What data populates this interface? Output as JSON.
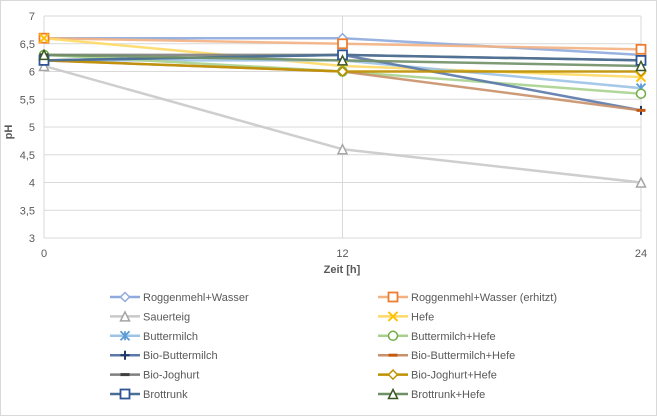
{
  "chart_data": {
    "type": "line",
    "title": "",
    "xlabel": "Zeit [h]",
    "ylabel": "pH",
    "x": [
      0,
      12,
      24
    ],
    "xticks": [
      "0",
      "12",
      "24"
    ],
    "ylim": [
      3,
      7
    ],
    "yticks": [
      "3",
      "3,5",
      "4",
      "4,5",
      "5",
      "5,5",
      "6",
      "6,5",
      "7"
    ],
    "grid": true,
    "legend_position": "bottom",
    "series": [
      {
        "name": "Roggenmehl+Wasser",
        "values": [
          6.6,
          6.6,
          6.3
        ],
        "color": "#8faadc",
        "marker": "diamond"
      },
      {
        "name": "Roggenmehl+Wasser (erhitzt)",
        "values": [
          6.6,
          6.5,
          6.4
        ],
        "color": "#f4b183",
        "marker": "square",
        "marker_color": "#ed7d31"
      },
      {
        "name": "Sauerteig",
        "values": [
          6.1,
          4.6,
          4.0
        ],
        "color": "#c9c9c9",
        "marker": "triangle",
        "marker_color": "#a5a5a5"
      },
      {
        "name": "Hefe",
        "values": [
          6.6,
          6.1,
          5.9
        ],
        "color": "#ffd966",
        "marker": "x",
        "marker_color": "#ffc000"
      },
      {
        "name": "Buttermilch",
        "values": [
          6.2,
          6.2,
          5.7
        ],
        "color": "#9dc3e6",
        "marker": "star",
        "marker_color": "#5b9bd5"
      },
      {
        "name": "Buttermilch+Hefe",
        "values": [
          6.3,
          6.0,
          5.6
        ],
        "color": "#a9d18e",
        "marker": "circle",
        "marker_color": "#70ad47"
      },
      {
        "name": "Bio-Buttermilch",
        "values": [
          6.2,
          6.3,
          5.3
        ],
        "color": "#5a78a8",
        "marker": "plus",
        "marker_color": "#203864"
      },
      {
        "name": "Bio-Buttermilch+Hefe",
        "values": [
          6.2,
          6.0,
          5.3
        ],
        "color": "#c9906a",
        "marker": "dash",
        "marker_color": "#c55a11"
      },
      {
        "name": "Bio-Joghurt",
        "values": [
          6.3,
          6.3,
          6.2
        ],
        "color": "#7f7f7f",
        "marker": "dash",
        "marker_color": "#404040"
      },
      {
        "name": "Bio-Joghurt+Hefe",
        "values": [
          6.2,
          6.0,
          6.0
        ],
        "color": "#bf9000",
        "marker": "diamond",
        "marker_color": "#bf9000"
      },
      {
        "name": "Brottrunk",
        "values": [
          6.2,
          6.3,
          6.2
        ],
        "color": "#4a6f96",
        "marker": "square",
        "marker_color": "#2f5597"
      },
      {
        "name": "Brottrunk+Hefe",
        "values": [
          6.3,
          6.2,
          6.1
        ],
        "color": "#6f8f66",
        "marker": "triangle",
        "marker_color": "#385723"
      }
    ]
  }
}
